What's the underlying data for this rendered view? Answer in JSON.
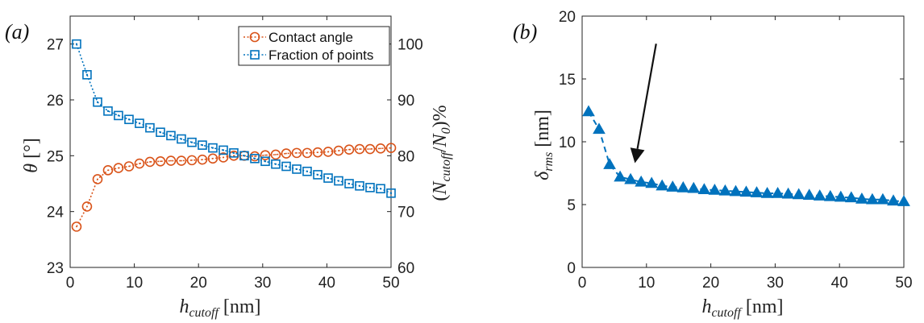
{
  "colors": {
    "contact": "#D95319",
    "fraction": "#0072BD",
    "rms": "#0072BD",
    "axis": "#222222",
    "arrow": "#111111"
  },
  "chart_data": [
    {
      "type": "line",
      "panel_label": "(a)",
      "xlabel": "h_cutoff [nm]",
      "xlabel_main": "h",
      "xlabel_sub": "cutoff",
      "xlabel_unit": " [nm]",
      "ylabel": "θ [°]",
      "ylabel_main": "θ",
      "ylabel_unit": " [°]",
      "y2label": "(N_cutoff/N_0)%",
      "y2label_a": "(N",
      "y2label_sub1": "cutoff",
      "y2label_b": "/N",
      "y2label_sub2": "0",
      "y2label_c": ")%",
      "xlim": [
        0,
        50
      ],
      "ylim": [
        23,
        27.5
      ],
      "y2lim": [
        60,
        105
      ],
      "xticks": [
        0,
        10,
        20,
        30,
        40,
        50
      ],
      "yticks": [
        23,
        24,
        25,
        26,
        27
      ],
      "y2ticks": [
        60,
        70,
        80,
        90,
        100
      ],
      "legend_position": "top-right",
      "x": [
        1,
        2.63,
        4.27,
        5.9,
        7.53,
        9.17,
        10.8,
        12.43,
        14.07,
        15.7,
        17.33,
        18.97,
        20.6,
        22.23,
        23.87,
        25.5,
        27.13,
        28.77,
        30.4,
        32.03,
        33.67,
        35.3,
        36.93,
        38.57,
        40.2,
        41.83,
        43.47,
        45.1,
        46.73,
        48.37,
        50
      ],
      "series": [
        {
          "name": "Contact angle",
          "axis": "left",
          "marker": "circle",
          "values": [
            23.73,
            24.09,
            24.58,
            24.74,
            24.78,
            24.81,
            24.86,
            24.89,
            24.9,
            24.91,
            24.91,
            24.92,
            24.93,
            24.95,
            24.97,
            25.0,
            25.0,
            24.99,
            25.01,
            25.02,
            25.04,
            25.05,
            25.05,
            25.06,
            25.07,
            25.09,
            25.11,
            25.12,
            25.12,
            25.13,
            25.14
          ]
        },
        {
          "name": "Fraction of points",
          "axis": "right",
          "marker": "square",
          "values": [
            100,
            94.5,
            89.6,
            88.0,
            87.2,
            86.5,
            85.8,
            85.0,
            84.2,
            83.6,
            83.0,
            82.4,
            81.9,
            81.4,
            81.0,
            80.5,
            80.0,
            79.5,
            79.0,
            78.5,
            78.1,
            77.6,
            77.2,
            76.6,
            76.0,
            75.5,
            75.0,
            74.6,
            74.3,
            74.1,
            73.3
          ]
        }
      ]
    },
    {
      "type": "line",
      "panel_label": "(b)",
      "xlabel": "h_cutoff [nm]",
      "xlabel_main": "h",
      "xlabel_sub": "cutoff",
      "xlabel_unit": " [nm]",
      "ylabel": "δ_rms [nm]",
      "ylabel_main": "δ",
      "ylabel_sub": "rms",
      "ylabel_unit": " [nm]",
      "xlim": [
        0,
        50
      ],
      "ylim": [
        0,
        20
      ],
      "xticks": [
        0,
        10,
        20,
        30,
        40,
        50
      ],
      "yticks": [
        0,
        5,
        10,
        15,
        20
      ],
      "x": [
        1,
        2.63,
        4.27,
        5.9,
        7.53,
        9.17,
        10.8,
        12.43,
        14.07,
        15.7,
        17.33,
        18.97,
        20.6,
        22.23,
        23.87,
        25.5,
        27.13,
        28.77,
        30.4,
        32.03,
        33.67,
        35.3,
        36.93,
        38.57,
        40.2,
        41.83,
        43.47,
        45.1,
        46.73,
        48.37,
        50
      ],
      "series": [
        {
          "marker": "triangle",
          "values": [
            12.4,
            11.0,
            8.2,
            7.2,
            7.0,
            6.8,
            6.7,
            6.5,
            6.4,
            6.35,
            6.3,
            6.2,
            6.15,
            6.1,
            6.05,
            6.0,
            5.95,
            5.9,
            5.9,
            5.85,
            5.8,
            5.75,
            5.7,
            5.65,
            5.6,
            5.55,
            5.45,
            5.4,
            5.4,
            5.3,
            5.25
          ]
        }
      ],
      "annotation": {
        "type": "arrow",
        "from": [
          11.5,
          17.8
        ],
        "to": [
          8.2,
          8.3
        ]
      }
    }
  ]
}
